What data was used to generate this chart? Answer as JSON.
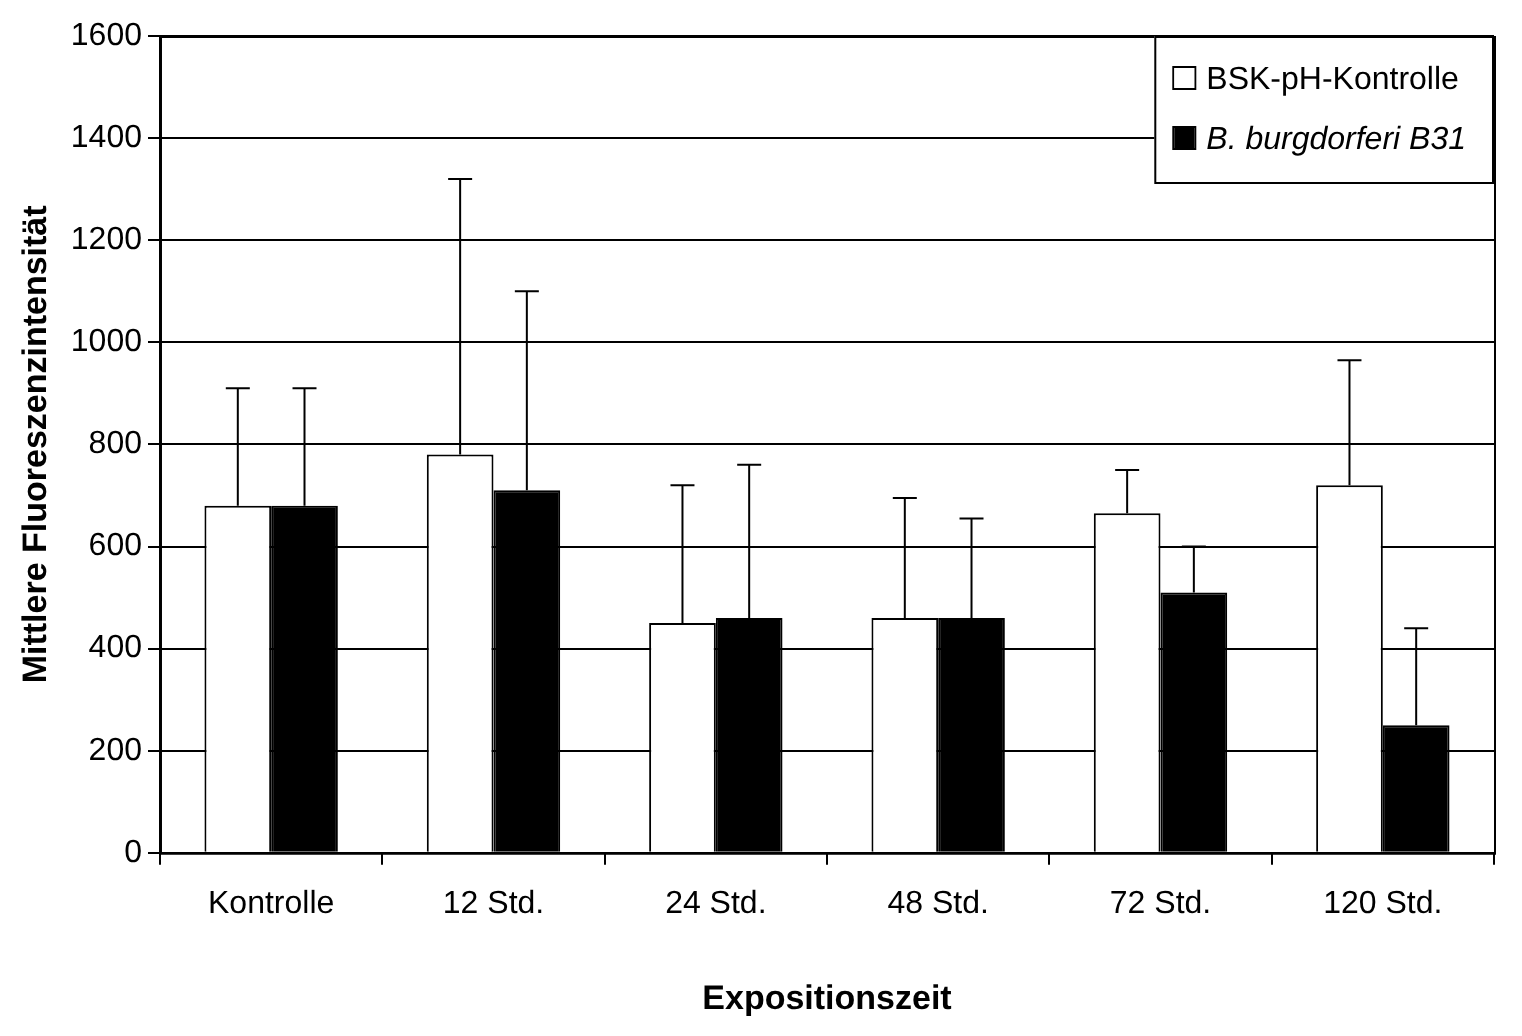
{
  "chart_data": {
    "type": "bar",
    "xlabel": "Expositionszeit",
    "ylabel": "Mittlere Fluoreszenzintensität",
    "categories": [
      "Kontrolle",
      "12 Std.",
      "24 Std.",
      "48 Std.",
      "72 Std.",
      "120 Std."
    ],
    "series": [
      {
        "name": "BSK-pH-Kontrolle",
        "color": "#ffffff",
        "values": [
          680,
          780,
          450,
          460,
          665,
          720
        ],
        "errors": [
          [
            680,
            910
          ],
          [
            780,
            1320
          ],
          [
            450,
            720
          ],
          [
            460,
            695
          ],
          [
            665,
            750
          ],
          [
            720,
            965
          ]
        ]
      },
      {
        "name": "B. burgdorferi B31",
        "color": "#000000",
        "values": [
          680,
          710,
          460,
          460,
          510,
          250
        ],
        "errors": [
          [
            680,
            910
          ],
          [
            710,
            1100
          ],
          [
            460,
            760
          ],
          [
            460,
            655
          ],
          [
            510,
            600
          ],
          [
            250,
            440
          ]
        ]
      }
    ],
    "ylim": [
      0,
      1600
    ],
    "yticks": [
      0,
      200,
      400,
      600,
      800,
      1000,
      1200,
      1400,
      1600
    ],
    "grid": "y",
    "legend": "top right"
  }
}
